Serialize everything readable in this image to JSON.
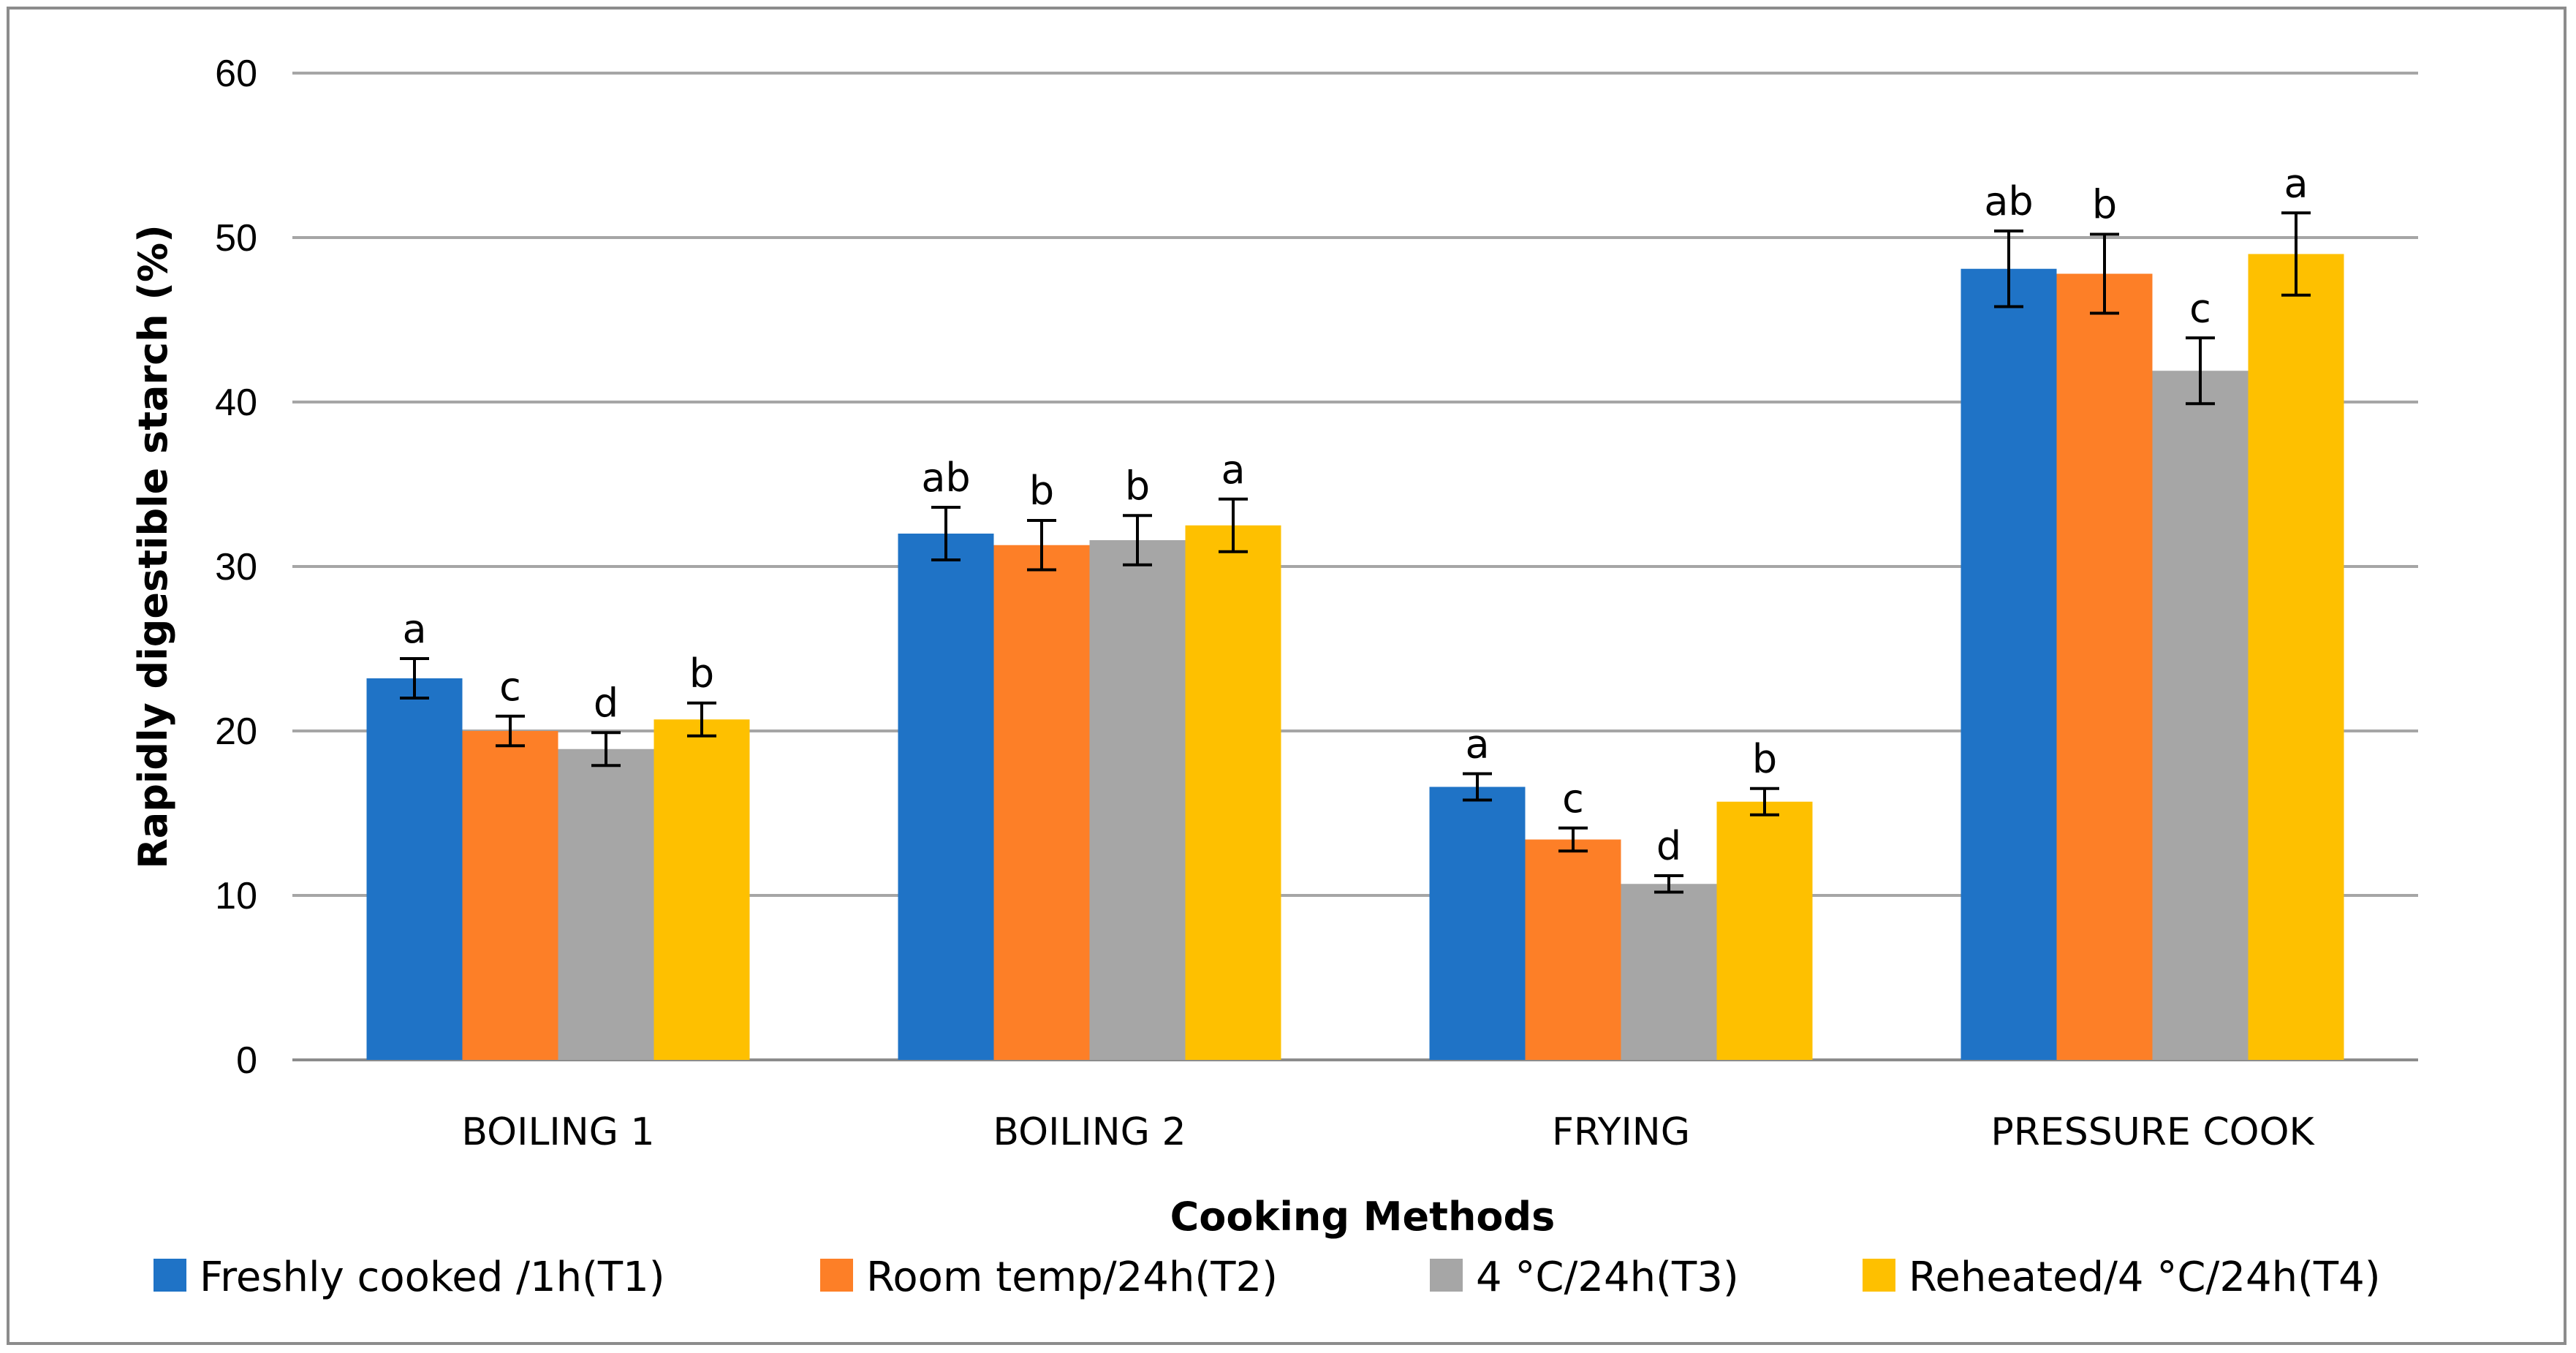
{
  "chart_data": {
    "type": "bar",
    "title": "",
    "xlabel": "Cooking Methods",
    "ylabel": "Rapidly digestible starch (%)",
    "ylim": [
      0,
      60
    ],
    "yticks": [
      "0",
      "10",
      "20",
      "30",
      "40",
      "50",
      "60"
    ],
    "grid": true,
    "legend_position": "bottom",
    "categories": [
      "BOILING 1",
      "BOILING 2",
      "FRYING",
      "PRESSURE COOK"
    ],
    "series": [
      {
        "name": "Freshly cooked /1h(T1)",
        "color": "#1f73c6",
        "values": [
          23.2,
          32.0,
          16.6,
          48.1
        ],
        "errors": [
          1.2,
          1.6,
          0.8,
          2.3
        ],
        "letters": [
          "a",
          "ab",
          "a",
          "ab"
        ]
      },
      {
        "name": "Room temp/24h(T2)",
        "color": "#fd7f27",
        "values": [
          20.0,
          31.3,
          13.4,
          47.8
        ],
        "errors": [
          0.9,
          1.5,
          0.7,
          2.4
        ],
        "letters": [
          "c",
          "b",
          "c",
          "b"
        ]
      },
      {
        "name": "4 °C/24h(T3)",
        "color": "#a6a6a6",
        "values": [
          18.9,
          31.6,
          10.7,
          41.9
        ],
        "errors": [
          1.0,
          1.5,
          0.5,
          2.0
        ],
        "letters": [
          "d",
          "b",
          "d",
          "c"
        ]
      },
      {
        "name": "Reheated/4 °C/24h(T4)",
        "color": "#fec000",
        "values": [
          20.7,
          32.5,
          15.7,
          49.0
        ],
        "errors": [
          1.0,
          1.6,
          0.8,
          2.5
        ],
        "letters": [
          "b",
          "a",
          "b",
          "a"
        ]
      }
    ]
  }
}
